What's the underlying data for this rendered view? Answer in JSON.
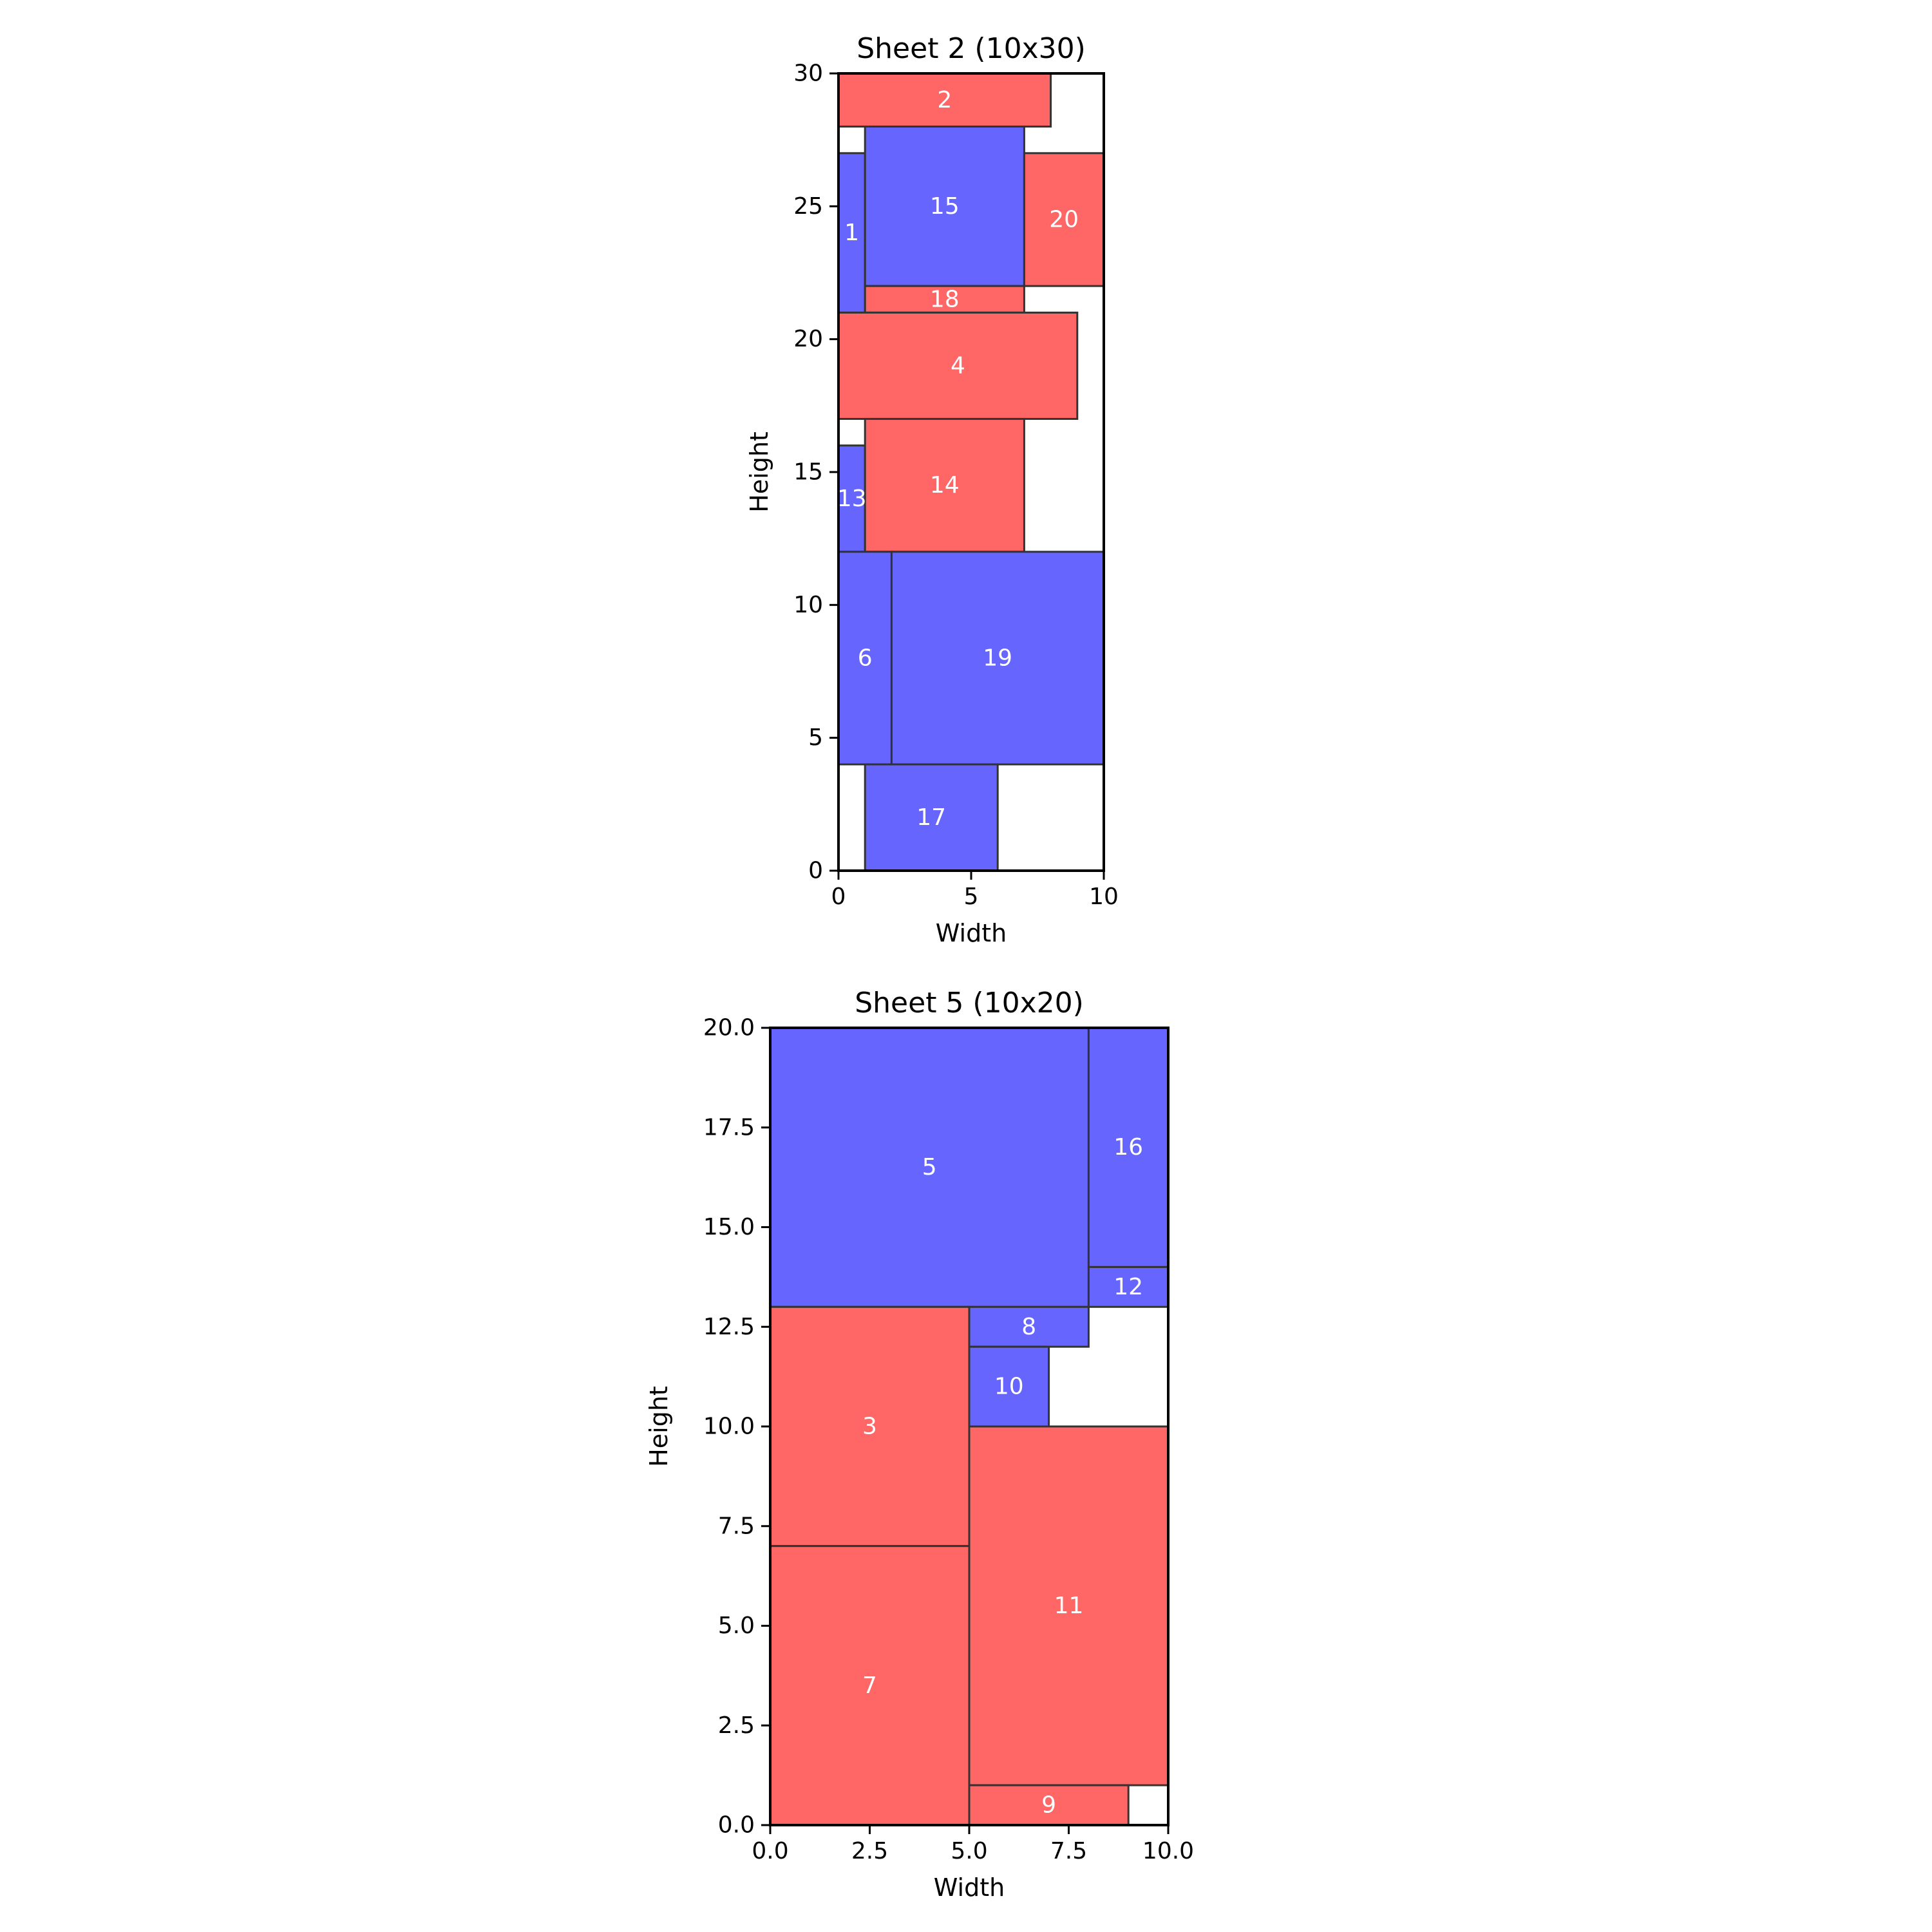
{
  "chart_data": [
    {
      "type": "rect_packing",
      "title": "Sheet 2 (10x30)",
      "xlabel": "Width",
      "ylabel": "Height",
      "xlim": [
        0,
        10
      ],
      "ylim": [
        0,
        30
      ],
      "xticks": [
        0,
        5,
        10
      ],
      "yticks": [
        0,
        5,
        10,
        15,
        20,
        25,
        30
      ],
      "tick_decimals": 0,
      "grid": false,
      "rects": [
        {
          "id": "2",
          "x": 0,
          "y": 28,
          "w": 8,
          "h": 2,
          "color": "red"
        },
        {
          "id": "1",
          "x": 0,
          "y": 21,
          "w": 1,
          "h": 6,
          "color": "blue"
        },
        {
          "id": "15",
          "x": 1,
          "y": 22,
          "w": 6,
          "h": 6,
          "color": "blue"
        },
        {
          "id": "20",
          "x": 7,
          "y": 22,
          "w": 3,
          "h": 5,
          "color": "red"
        },
        {
          "id": "18",
          "x": 1,
          "y": 21,
          "w": 6,
          "h": 1,
          "color": "red"
        },
        {
          "id": "4",
          "x": 0,
          "y": 17,
          "w": 9,
          "h": 4,
          "color": "red"
        },
        {
          "id": "13",
          "x": 0,
          "y": 12,
          "w": 1,
          "h": 4,
          "color": "blue"
        },
        {
          "id": "14",
          "x": 1,
          "y": 12,
          "w": 6,
          "h": 5,
          "color": "red"
        },
        {
          "id": "6",
          "x": 0,
          "y": 4,
          "w": 2,
          "h": 8,
          "color": "blue"
        },
        {
          "id": "19",
          "x": 2,
          "y": 4,
          "w": 8,
          "h": 8,
          "color": "blue"
        },
        {
          "id": "17",
          "x": 1,
          "y": 0,
          "w": 5,
          "h": 4,
          "color": "blue"
        }
      ]
    },
    {
      "type": "rect_packing",
      "title": "Sheet 5 (10x20)",
      "xlabel": "Width",
      "ylabel": "Height",
      "xlim": [
        0,
        10
      ],
      "ylim": [
        0,
        20
      ],
      "xticks": [
        0,
        2.5,
        5,
        7.5,
        10
      ],
      "yticks": [
        0,
        2.5,
        5,
        7.5,
        10,
        12.5,
        15,
        17.5,
        20
      ],
      "tick_decimals": 1,
      "grid": false,
      "rects": [
        {
          "id": "5",
          "x": 0,
          "y": 13,
          "w": 8,
          "h": 7,
          "color": "blue"
        },
        {
          "id": "16",
          "x": 8,
          "y": 14,
          "w": 2,
          "h": 6,
          "color": "blue"
        },
        {
          "id": "12",
          "x": 8,
          "y": 13,
          "w": 2,
          "h": 1,
          "color": "blue"
        },
        {
          "id": "8",
          "x": 5,
          "y": 12,
          "w": 3,
          "h": 1,
          "color": "blue"
        },
        {
          "id": "10",
          "x": 5,
          "y": 10,
          "w": 2,
          "h": 2,
          "color": "blue"
        },
        {
          "id": "3",
          "x": 0,
          "y": 7,
          "w": 5,
          "h": 6,
          "color": "red"
        },
        {
          "id": "7",
          "x": 0,
          "y": 0,
          "w": 5,
          "h": 7,
          "color": "red"
        },
        {
          "id": "11",
          "x": 5,
          "y": 1,
          "w": 5,
          "h": 9,
          "color": "red"
        },
        {
          "id": "9",
          "x": 5,
          "y": 0,
          "w": 4,
          "h": 1,
          "color": "red"
        }
      ]
    }
  ],
  "colors": {
    "red": "#ff6666",
    "blue": "#6666ff",
    "edge": "#333333",
    "label": "#ffffff",
    "axis": "#000000"
  }
}
